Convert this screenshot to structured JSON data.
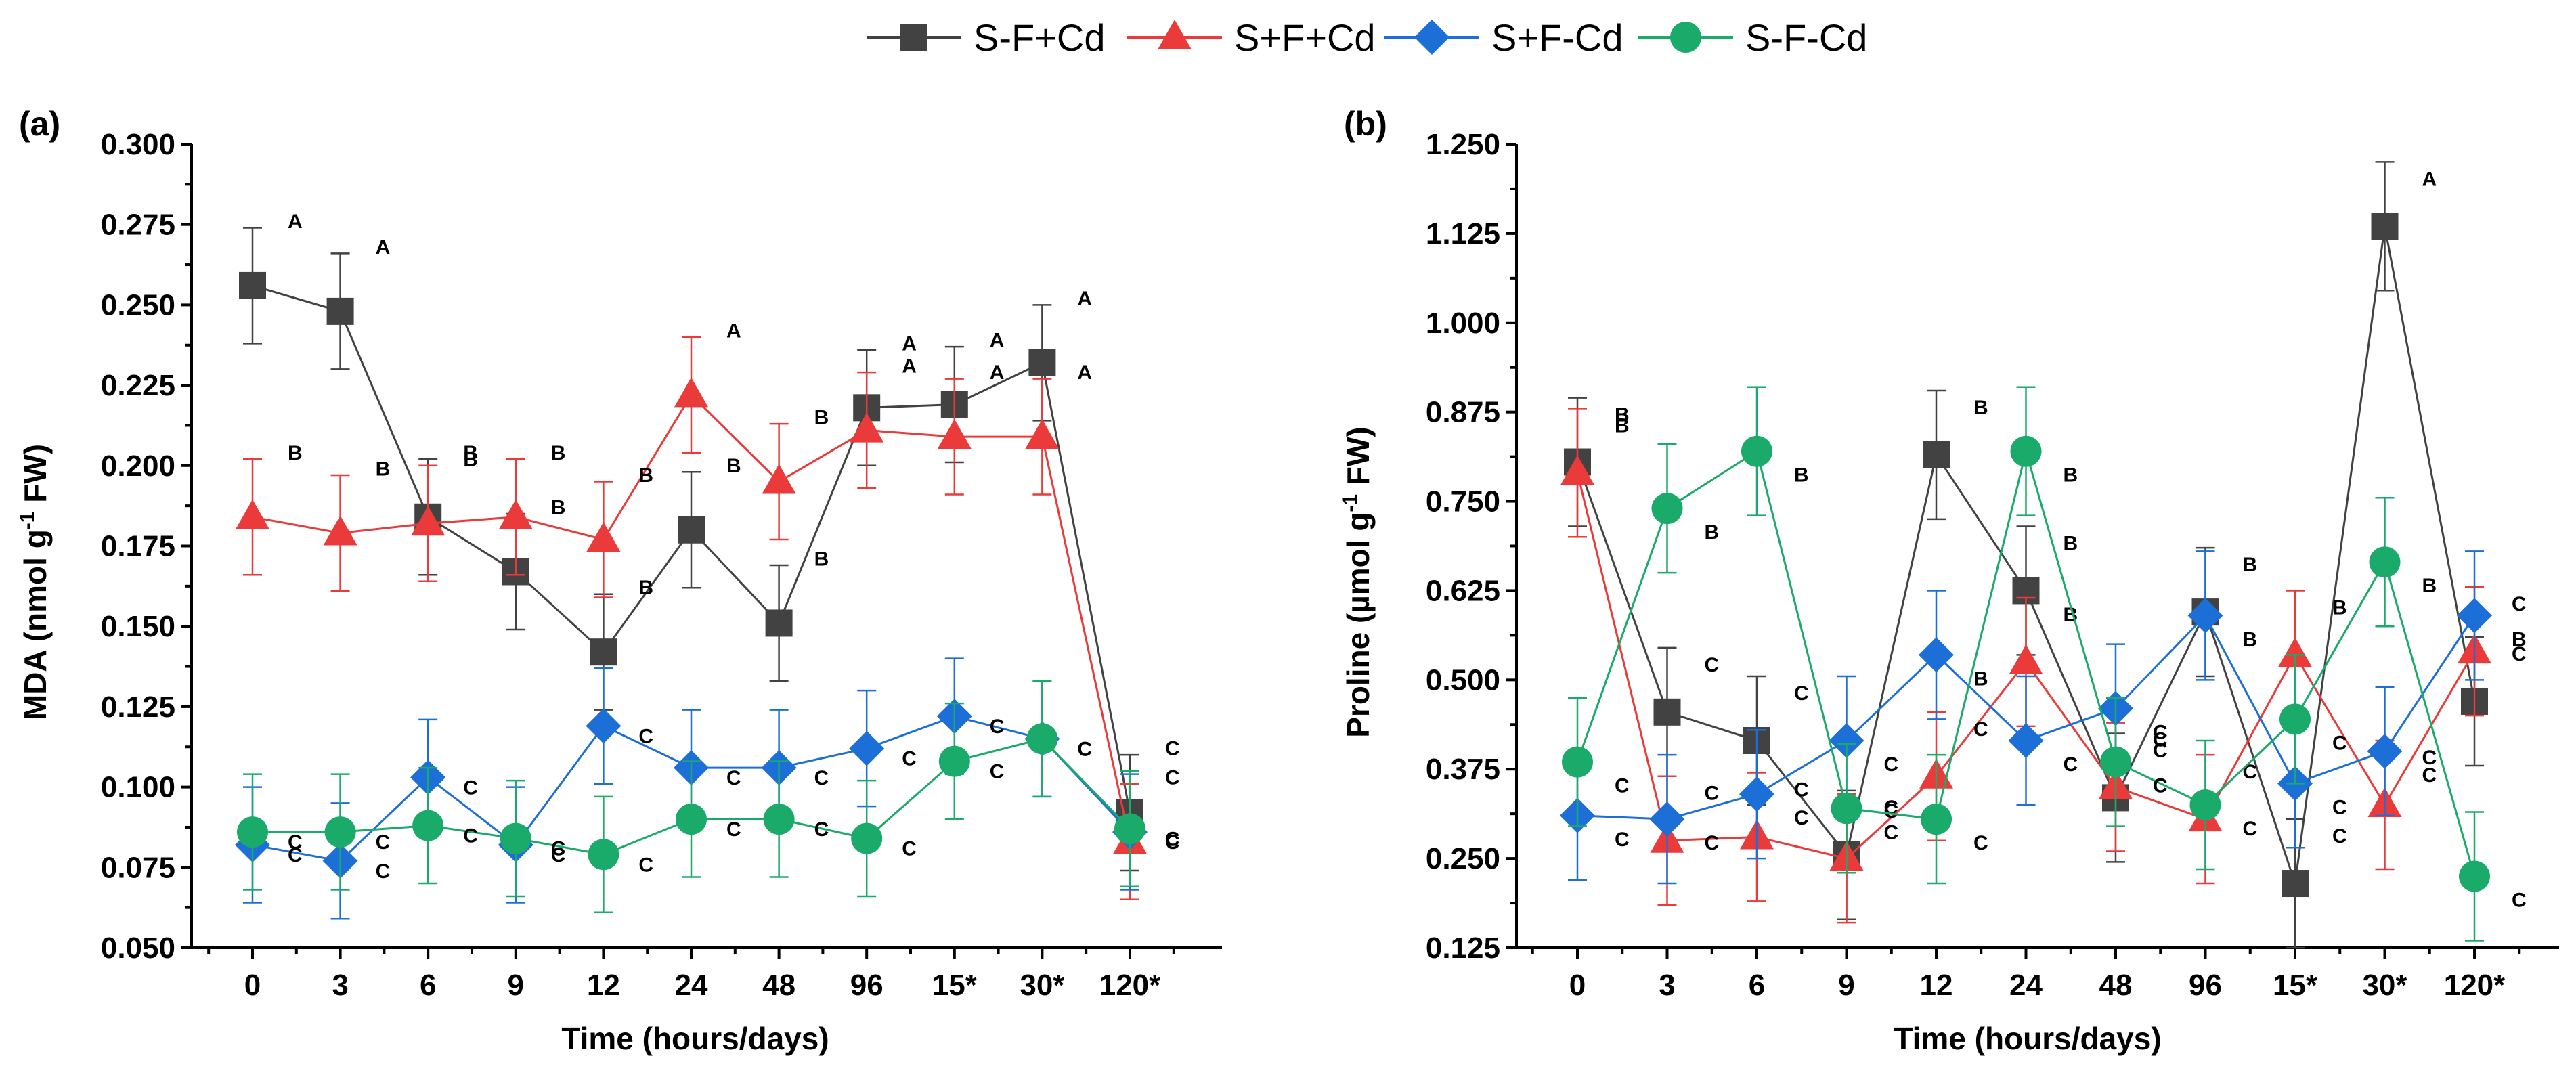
{
  "legend": [
    {
      "name": "S-F+Cd",
      "color": "#424242",
      "marker": "square"
    },
    {
      "name": "S+F+Cd",
      "color": "#ea3a3a",
      "marker": "triangle"
    },
    {
      "name": "S+F-Cd",
      "color": "#1d6fd8",
      "marker": "diamond"
    },
    {
      "name": "S-F-Cd",
      "color": "#1aaa6a",
      "marker": "circle"
    }
  ],
  "chart_data": [
    {
      "panel": "(a)",
      "type": "line",
      "categories": [
        "0",
        "3",
        "6",
        "9",
        "12",
        "24",
        "48",
        "96",
        "15*",
        "30*",
        "120*"
      ],
      "xlabel": "Time (hours/days)",
      "ylabel_parts": {
        "pre": "MDA (nmol g",
        "sup": "-1",
        "post": " FW)"
      },
      "ylim": [
        0.05,
        0.3
      ],
      "yticks": [
        "0.050",
        "0.075",
        "0.100",
        "0.125",
        "0.150",
        "0.175",
        "0.200",
        "0.225",
        "0.250",
        "0.275",
        "0.300"
      ],
      "series": [
        {
          "name": "S-F+Cd",
          "values": [
            0.256,
            0.248,
            0.184,
            0.167,
            0.142,
            0.18,
            0.151,
            0.218,
            0.219,
            0.232,
            0.092
          ],
          "err": [
            0.018,
            0.018,
            0.018,
            0.018,
            0.018,
            0.018,
            0.018,
            0.018,
            0.018,
            0.018,
            0.018
          ],
          "letters": [
            "A",
            "A",
            "B",
            "B",
            "B",
            "B",
            "B",
            "A",
            "A",
            "A",
            "C"
          ]
        },
        {
          "name": "S+F+Cd",
          "values": [
            0.184,
            0.179,
            0.182,
            0.184,
            0.177,
            0.222,
            0.195,
            0.211,
            0.209,
            0.209,
            0.083
          ],
          "err": [
            0.018,
            0.018,
            0.018,
            0.018,
            0.018,
            0.018,
            0.018,
            0.018,
            0.018,
            0.018,
            0.018
          ],
          "letters": [
            "B",
            "B",
            "B",
            "B",
            "B",
            "A",
            "B",
            "A",
            "A",
            "A",
            "C"
          ]
        },
        {
          "name": "S+F-Cd",
          "values": [
            0.082,
            0.077,
            0.103,
            0.082,
            0.119,
            0.106,
            0.106,
            0.112,
            0.122,
            0.115,
            0.086
          ],
          "err": [
            0.018,
            0.018,
            0.018,
            0.018,
            0.018,
            0.018,
            0.018,
            0.018,
            0.018,
            0.018,
            0.018
          ],
          "letters": [
            "C",
            "C",
            "C",
            "C",
            "C",
            "C",
            "C",
            "C",
            "C",
            "C",
            "C"
          ]
        },
        {
          "name": "S-F-Cd",
          "values": [
            0.086,
            0.086,
            0.088,
            0.084,
            0.079,
            0.09,
            0.09,
            0.084,
            0.108,
            0.115,
            0.087
          ],
          "err": [
            0.018,
            0.018,
            0.018,
            0.018,
            0.018,
            0.018,
            0.018,
            0.018,
            0.018,
            0.018,
            0.018
          ],
          "letters": [
            "C",
            "C",
            "C",
            "C",
            "C",
            "C",
            "C",
            "C",
            "C",
            "C",
            "C"
          ]
        }
      ]
    },
    {
      "panel": "(b)",
      "type": "line",
      "categories": [
        "0",
        "3",
        "6",
        "9",
        "12",
        "24",
        "48",
        "96",
        "15*",
        "30*",
        "120*"
      ],
      "xlabel": "Time (hours/days)",
      "ylabel_parts": {
        "pre": "Proline (µmol g",
        "sup": "-1",
        "post": " FW)"
      },
      "ylim": [
        0.125,
        1.25
      ],
      "yticks": [
        "0.125",
        "0.250",
        "0.375",
        "0.500",
        "0.625",
        "0.750",
        "0.875",
        "1.000",
        "1.125",
        "1.250"
      ],
      "series": [
        {
          "name": "S-F+Cd",
          "values": [
            0.805,
            0.455,
            0.415,
            0.255,
            0.815,
            0.625,
            0.335,
            0.595,
            0.215,
            1.135,
            0.47
          ],
          "err": [
            0.09,
            0.09,
            0.09,
            0.09,
            0.09,
            0.09,
            0.09,
            0.09,
            0.09,
            0.09,
            0.09
          ],
          "letters": [
            "B",
            "C",
            "C",
            "C",
            "B",
            "B",
            "C",
            "B",
            "C",
            "A",
            "C"
          ]
        },
        {
          "name": "S+F+Cd",
          "values": [
            0.79,
            0.275,
            0.28,
            0.25,
            0.365,
            0.525,
            0.35,
            0.305,
            0.535,
            0.325,
            0.54
          ],
          "err": [
            0.09,
            0.09,
            0.09,
            0.09,
            0.09,
            0.09,
            0.09,
            0.09,
            0.09,
            0.09,
            0.09
          ],
          "letters": [
            "B",
            "C",
            "C",
            "C",
            "C",
            "B",
            "C",
            "C",
            "B",
            "C",
            "C"
          ]
        },
        {
          "name": "S+F-Cd",
          "values": [
            0.31,
            0.305,
            0.34,
            0.415,
            0.535,
            0.415,
            0.46,
            0.59,
            0.355,
            0.4,
            0.59
          ],
          "err": [
            0.09,
            0.09,
            0.09,
            0.09,
            0.09,
            0.09,
            0.09,
            0.09,
            0.09,
            0.09,
            0.09
          ],
          "letters": [
            "C",
            "C",
            "C",
            "C",
            "B",
            "C",
            "C",
            "B",
            "C",
            "C",
            "B"
          ]
        },
        {
          "name": "S-F-Cd",
          "values": [
            0.385,
            0.74,
            0.82,
            0.32,
            0.305,
            0.82,
            0.385,
            0.325,
            0.445,
            0.665,
            0.225
          ],
          "err": [
            0.09,
            0.09,
            0.09,
            0.09,
            0.09,
            0.09,
            0.09,
            0.09,
            0.09,
            0.09,
            0.09
          ],
          "letters": [
            "C",
            "B",
            "B",
            "C",
            "C",
            "B",
            "C",
            "C",
            "C",
            "B",
            "C"
          ]
        }
      ]
    }
  ]
}
